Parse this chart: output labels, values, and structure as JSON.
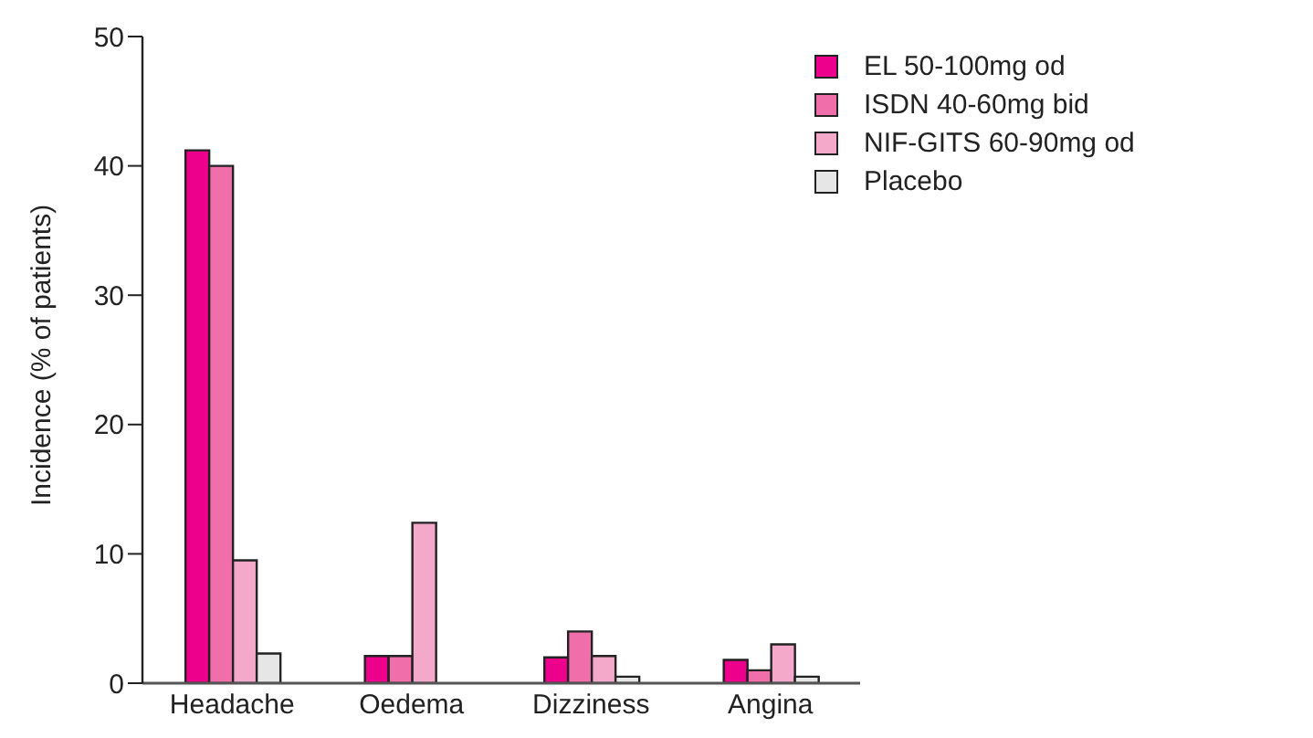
{
  "chart_data": {
    "type": "bar",
    "ylabel": "Incidence (% of patients)",
    "categories": [
      "Headache",
      "Oedema",
      "Dizziness",
      "Angina"
    ],
    "series": [
      {
        "name": "EL 50-100mg od",
        "color": "#ec008c",
        "values": [
          41.2,
          2.1,
          2.0,
          1.8
        ]
      },
      {
        "name": "ISDN 40-60mg bid",
        "color": "#f06ea9",
        "values": [
          40,
          2.1,
          4.0,
          1.0
        ]
      },
      {
        "name": "NIF-GITS 60-90mg od",
        "color": "#f4a9cb",
        "values": [
          9.5,
          12.4,
          2.1,
          3.0
        ]
      },
      {
        "name": "Placebo",
        "color": "#e6e6e6",
        "values": [
          2.3,
          null,
          0.5,
          0.5
        ]
      }
    ],
    "ylim": [
      0,
      50
    ],
    "yticks": [
      0,
      10,
      20,
      30,
      40,
      50
    ],
    "grid": false,
    "legend": "top right"
  }
}
